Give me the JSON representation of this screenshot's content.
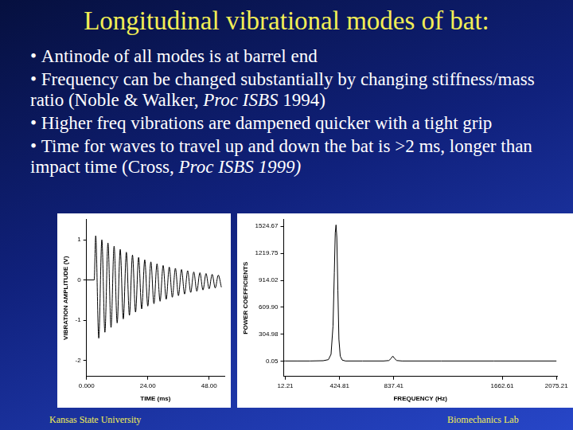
{
  "slide": {
    "title": "Longitudinal vibrational modes of bat:",
    "bullets": [
      [
        {
          "text": "Antinode of all modes is at barrel end",
          "italic": false
        }
      ],
      [
        {
          "text": "Frequency can be changed substantially by changing stiffness/mass ratio (Noble & Walker, ",
          "italic": false
        },
        {
          "text": "Proc ISBS",
          "italic": true
        },
        {
          "text": " 1994)",
          "italic": false
        }
      ],
      [
        {
          "text": "Higher freq vibrations are dampened quicker with a tight grip",
          "italic": false
        }
      ],
      [
        {
          "text": "Time for waves to travel up and down the bat is >2 ms, longer than impact time (Cross, ",
          "italic": false
        },
        {
          "text": "Proc ISBS 1999)",
          "italic": true
        }
      ]
    ],
    "footer_left": "Kansas State University",
    "footer_right": "Biomechanics Lab"
  },
  "chart_data": [
    {
      "type": "line",
      "x_label": "TIME (ms)",
      "y_label": "VIBRATION AMPLITUDE (V)",
      "x": [
        0,
        3.0,
        3.6,
        4.8,
        6.0,
        7.2,
        8.4,
        9.6,
        10.8,
        12.0,
        13.2,
        14.4,
        15.6,
        16.8,
        18.0,
        19.2,
        20.4,
        21.6,
        22.8,
        24.0,
        25.2,
        26.4,
        27.6,
        28.8,
        30.0,
        31.2,
        32.4,
        33.6,
        34.8,
        36.0,
        37.2,
        38.4,
        39.6,
        40.8,
        42.0,
        43.2,
        44.4,
        45.6,
        46.8,
        48.0,
        49.2,
        50.4,
        51.6,
        52.8
      ],
      "values": [
        0,
        0,
        1.1,
        -1.45,
        1.0,
        -1.3,
        0.92,
        -1.18,
        0.84,
        -1.07,
        0.76,
        -0.97,
        0.69,
        -0.88,
        0.62,
        -0.8,
        0.56,
        -0.72,
        0.5,
        -0.65,
        0.45,
        -0.59,
        0.4,
        -0.53,
        0.36,
        -0.48,
        0.32,
        -0.43,
        0.29,
        -0.39,
        0.26,
        -0.35,
        0.23,
        -0.31,
        0.2,
        -0.28,
        0.18,
        -0.25,
        0.16,
        -0.22,
        0.14,
        -0.2,
        0.12,
        -0.18
      ],
      "xlim": [
        0,
        54
      ],
      "ylim": [
        -2.4,
        1.5
      ],
      "xticks": [
        {
          "value": 0,
          "label": "0.000"
        },
        {
          "value": 24,
          "label": "24.00"
        },
        {
          "value": 48,
          "label": "48.00"
        }
      ],
      "yticks": [
        -2,
        -1,
        0,
        1
      ],
      "grid": false,
      "color": "#000000"
    },
    {
      "type": "line",
      "x_label": "FREQUENCY (Hz)",
      "y_label": "POWER COEFFICIENTS",
      "x": [
        0,
        12.21,
        100,
        200,
        300,
        340,
        360,
        375,
        385,
        392,
        398,
        404,
        412,
        420,
        430,
        445,
        470,
        600,
        760,
        800,
        815,
        830,
        845,
        860,
        900,
        1200,
        1600,
        2075
      ],
      "values": [
        5,
        5,
        5,
        5,
        8,
        20,
        80,
        400,
        1000,
        1450,
        1540,
        1400,
        800,
        250,
        60,
        15,
        5,
        5,
        5,
        10,
        30,
        60,
        30,
        10,
        5,
        5,
        5,
        5
      ],
      "xlim": [
        0,
        2080
      ],
      "ylim": [
        -170,
        1600
      ],
      "xticks": [
        12.21,
        424.81,
        837.41,
        1662.61,
        2075.21
      ],
      "yticks": [
        0.05,
        304.98,
        {
          "value": 609.9,
          "label": "609.90"
        },
        914.02,
        1219.75,
        1524.67
      ],
      "grid": false,
      "color": "#000000"
    }
  ]
}
